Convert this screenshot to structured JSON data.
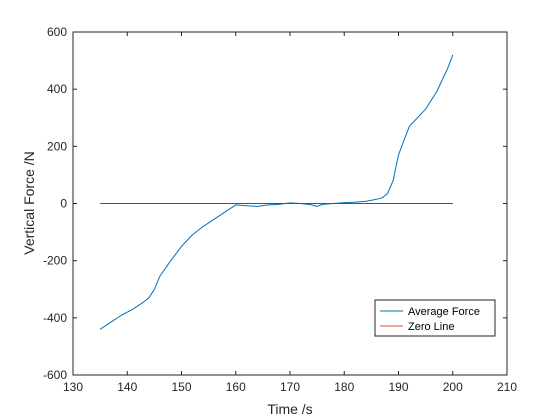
{
  "chart_data": {
    "type": "line",
    "title": "",
    "xlabel": "Time /s",
    "ylabel": "Vertical Force /N",
    "xlim": [
      130,
      210
    ],
    "ylim": [
      -600,
      600
    ],
    "xticks": [
      "130",
      "140",
      "150",
      "160",
      "170",
      "180",
      "190",
      "200",
      "210"
    ],
    "yticks": [
      "600",
      "400",
      "200",
      "0",
      "-200",
      "-400",
      "-600"
    ],
    "grid": false,
    "legend_position": "bottom-right",
    "series": [
      {
        "name": "Average Force",
        "color": "#0072bd",
        "x": [
          135,
          137,
          139,
          141,
          143,
          144,
          145,
          146,
          148,
          150,
          152,
          154,
          156,
          158,
          160,
          162,
          164,
          166,
          168,
          170,
          172,
          174,
          175,
          176,
          178,
          180,
          182,
          184,
          186,
          187,
          188,
          189,
          190,
          191,
          192,
          193,
          194,
          195,
          196,
          197,
          198,
          199,
          200
        ],
        "y": [
          -440,
          -415,
          -390,
          -370,
          -345,
          -330,
          -300,
          -255,
          -200,
          -150,
          -110,
          -80,
          -55,
          -30,
          -5,
          -8,
          -10,
          -5,
          -3,
          2,
          0,
          -5,
          -10,
          -3,
          0,
          3,
          5,
          8,
          15,
          20,
          35,
          80,
          170,
          220,
          270,
          290,
          310,
          330,
          360,
          390,
          430,
          470,
          520
        ]
      },
      {
        "name": "Zero Line",
        "color": "#d95319",
        "x": [
          135,
          200
        ],
        "y": [
          0,
          0
        ]
      }
    ]
  }
}
